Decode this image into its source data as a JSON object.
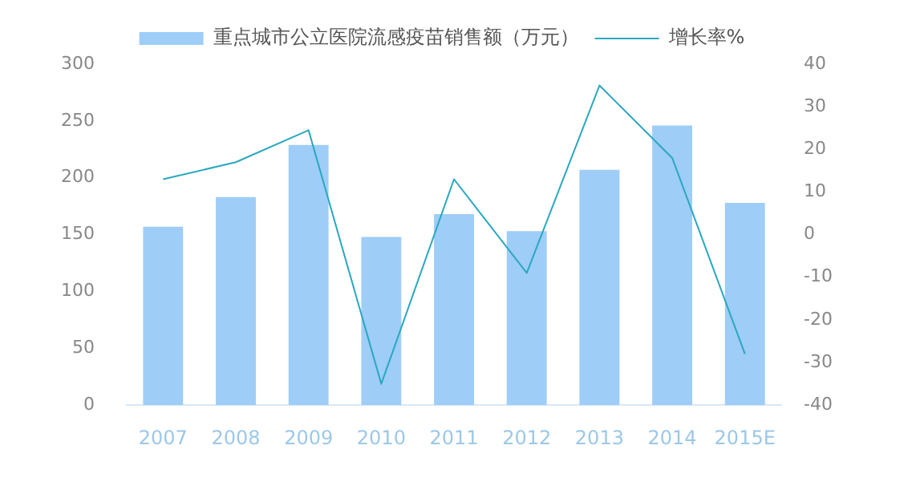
{
  "chart_data": {
    "type": "bar",
    "categories": [
      "2007",
      "2008",
      "2009",
      "2010",
      "2011",
      "2012",
      "2013",
      "2014",
      "2015E"
    ],
    "series": [
      {
        "name": "重点城市公立医院流感疫苗销售额（万元）",
        "color": "#9ecdf7",
        "values": [
          157,
          183,
          229,
          148,
          168,
          153,
          207,
          246,
          178
        ]
      },
      {
        "name": "增长率%",
        "type": "line",
        "axis": "y2",
        "color": "#2aa8c0",
        "values": [
          13,
          17,
          24.5,
          -35,
          13,
          -9,
          35,
          18,
          -28
        ]
      }
    ],
    "ylim": [
      0,
      300
    ],
    "yticks": [
      0,
      50,
      100,
      150,
      200,
      250,
      300
    ],
    "y2lim": [
      -40,
      40
    ],
    "y2ticks": [
      -40,
      -30,
      -20,
      -10,
      0,
      10,
      20,
      30,
      40
    ],
    "grid": false,
    "legend": "top",
    "marker": "none"
  }
}
